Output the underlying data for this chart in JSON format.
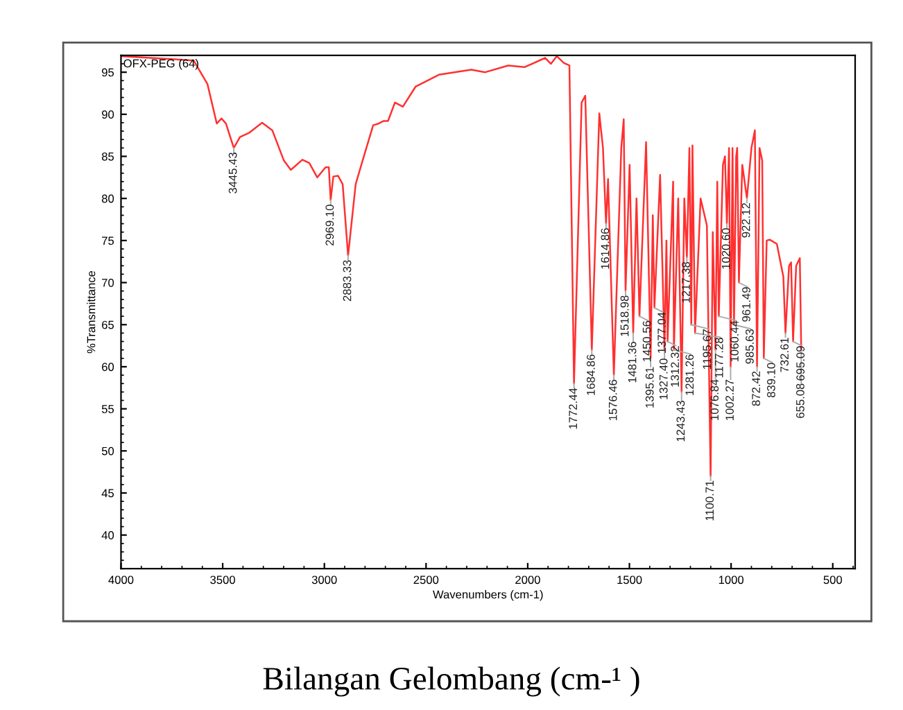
{
  "chart_data": {
    "type": "line",
    "xlabel": "Wavenumbers (cm-1)",
    "ylabel": "%Transmittance",
    "xlim": [
      4000,
      390
    ],
    "xticks": [
      4000,
      3500,
      3000,
      2500,
      2000,
      1500,
      1000,
      500
    ],
    "ylim": [
      36,
      97
    ],
    "yticks": [
      40,
      45,
      50,
      55,
      60,
      65,
      70,
      75,
      80,
      85,
      90,
      95
    ],
    "grid": false,
    "legend": false,
    "marker": "none",
    "line_style": "solid",
    "series": [
      {
        "color": "#ff3030",
        "x": [
          4000,
          3643,
          3575,
          3529,
          3506,
          3484,
          3445.43,
          3415,
          3370,
          3306,
          3256,
          3199,
          3165,
          3108,
          3074,
          3035,
          2994,
          2978,
          2969.1,
          2956,
          2933,
          2910,
          2883.33,
          2846,
          2812,
          2760,
          2733,
          2710,
          2687,
          2653,
          2614,
          2551,
          2437,
          2278,
          2209,
          2096,
          2016,
          1914,
          1886,
          1857,
          1822,
          1795,
          1772.44,
          1735,
          1717,
          1684.86,
          1648,
          1630,
          1614.86,
          1605,
          1576.46,
          1540,
          1528,
          1518.98,
          1499,
          1481.36,
          1465,
          1450.56,
          1418,
          1395.61,
          1385,
          1377.04,
          1349,
          1327.4,
          1318,
          1312.32,
          1285,
          1281.26,
          1260,
          1243.43,
          1230,
          1217.38,
          1205,
          1195.67,
          1190,
          1177.28,
          1150,
          1119,
          1100.71,
          1090,
          1076.84,
          1068,
          1060.44,
          1040,
          1030,
          1020.6,
          1010,
          1002.27,
          993,
          985.63,
          975,
          970,
          961.49,
          945,
          922.12,
          900,
          883,
          872.42,
          860,
          847,
          839.1,
          825,
          810,
          775,
          743,
          732.61,
          715,
          705,
          695.09,
          680,
          662,
          655.08
        ],
        "values": [
          96.9,
          96.4,
          93.6,
          88.9,
          89.5,
          88.9,
          86,
          87.3,
          87.8,
          89.0,
          88.1,
          84.5,
          83.4,
          84.6,
          84.2,
          82.5,
          83.7,
          83.7,
          79.8,
          82.6,
          82.7,
          81.7,
          73.2,
          81.7,
          84.5,
          88.7,
          88.9,
          89.2,
          89.2,
          91.4,
          90.9,
          93.3,
          94.7,
          95.3,
          95.0,
          95.8,
          95.6,
          96.7,
          96.0,
          96.9,
          96.1,
          95.8,
          58,
          91.4,
          92.2,
          62,
          90.1,
          86,
          77,
          82.3,
          59,
          86,
          89.4,
          69,
          84,
          64,
          80,
          66,
          86.7,
          61,
          78,
          67,
          82.8,
          62,
          75,
          63,
          82.0,
          62,
          80,
          57,
          80,
          73,
          86,
          65,
          86.3,
          64,
          80,
          76.8,
          47,
          76,
          62,
          82,
          66,
          84,
          85,
          77,
          86,
          60,
          86,
          65,
          85,
          86,
          70,
          84,
          80,
          86,
          88.1,
          60,
          86,
          84.5,
          61,
          75,
          75.1,
          74.6,
          70.7,
          64,
          72,
          72.4,
          63,
          72,
          72.9,
          62
        ]
      }
    ],
    "annotations": [
      "OFX-PEG (64)",
      "Bilangan Gelombang (cm-¹ )",
      {
        "text": "3445.43",
        "x": 3445.43,
        "y": 86
      },
      {
        "text": "2969.10",
        "x": 2969.1,
        "y": 79.8
      },
      {
        "text": "2883.33",
        "x": 2883.33,
        "y": 73.2
      },
      {
        "text": "1772.44",
        "x": 1772.44,
        "y": 58
      },
      {
        "text": "1684.86",
        "x": 1684.86,
        "y": 62
      },
      {
        "text": "1614.86",
        "x": 1614.86,
        "y": 77
      },
      {
        "text": "1576.46",
        "x": 1576.46,
        "y": 59
      },
      {
        "text": "1518.98",
        "x": 1518.98,
        "y": 69
      },
      {
        "text": "1481.36",
        "x": 1481.36,
        "y": 64
      },
      {
        "text": "1450.56",
        "x": 1450.56,
        "y": 66
      },
      {
        "text": "1395.61",
        "x": 1395.61,
        "y": 61
      },
      {
        "text": "1377.04",
        "x": 1377.04,
        "y": 67
      },
      {
        "text": "1327.40",
        "x": 1327.4,
        "y": 62
      },
      {
        "text": "1312.32",
        "x": 1312.32,
        "y": 63
      },
      {
        "text": "1281.26",
        "x": 1281.26,
        "y": 62
      },
      {
        "text": "1243.43",
        "x": 1243.43,
        "y": 57
      },
      {
        "text": "1217.38",
        "x": 1217.38,
        "y": 73
      },
      {
        "text": "1195.67",
        "x": 1195.67,
        "y": 65
      },
      {
        "text": "1177.28",
        "x": 1177.28,
        "y": 64
      },
      {
        "text": "1100.71",
        "x": 1100.71,
        "y": 47
      },
      {
        "text": "1076.84",
        "x": 1076.84,
        "y": 62
      },
      {
        "text": "1060.44",
        "x": 1060.44,
        "y": 66
      },
      {
        "text": "1020.60",
        "x": 1020.6,
        "y": 77
      },
      {
        "text": "1002.27",
        "x": 1002.27,
        "y": 60
      },
      {
        "text": "985.63",
        "x": 985.63,
        "y": 65
      },
      {
        "text": "961.49",
        "x": 961.49,
        "y": 70
      },
      {
        "text": "922.12",
        "x": 922.12,
        "y": 80
      },
      {
        "text": "872.42",
        "x": 872.42,
        "y": 60
      },
      {
        "text": "839.10",
        "x": 839.1,
        "y": 61
      },
      {
        "text": "732.61",
        "x": 732.61,
        "y": 64
      },
      {
        "text": "695.09",
        "x": 695.09,
        "y": 63
      },
      {
        "text": "655.08",
        "x": 655.08,
        "y": 62
      }
    ]
  }
}
